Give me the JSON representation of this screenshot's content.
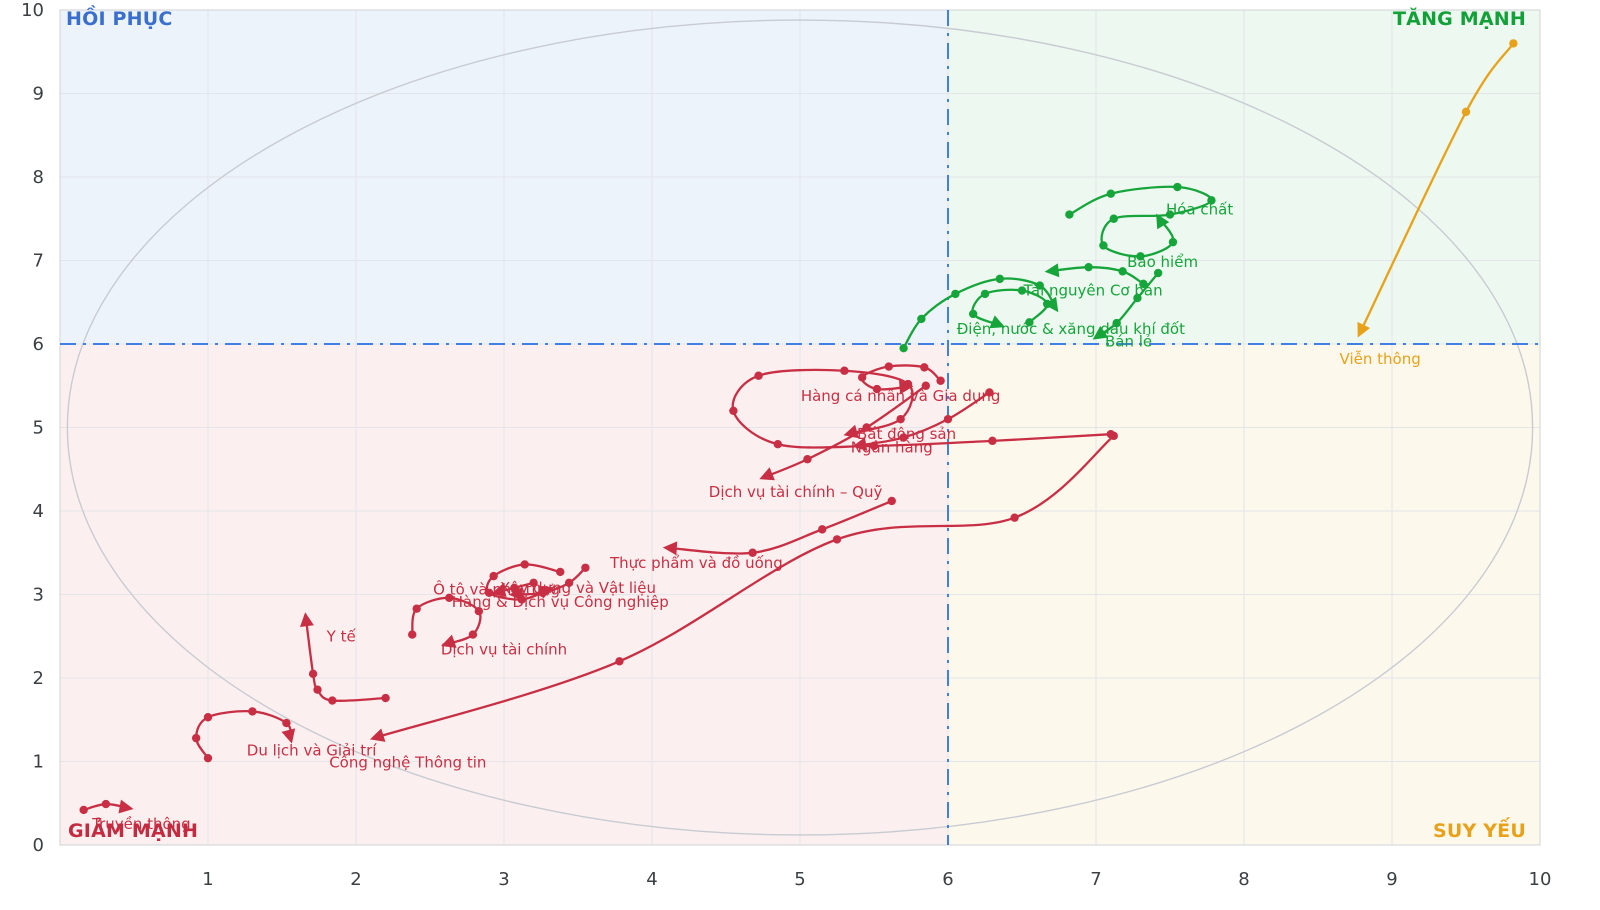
{
  "chart_data": {
    "type": "scatter",
    "variant": "relative-rotation-graph",
    "xlim": [
      0,
      10
    ],
    "ylim": [
      0,
      10
    ],
    "x_ticks": [
      1,
      2,
      3,
      4,
      5,
      6,
      7,
      8,
      9,
      10
    ],
    "y_ticks": [
      0,
      1,
      2,
      3,
      4,
      5,
      6,
      7,
      8,
      9,
      10
    ],
    "grid": true,
    "grid_color": "#e3e5e9",
    "border_color": "#d7d9dd",
    "center": [
      6,
      6
    ],
    "crosshair": {
      "x": 6,
      "y": 6,
      "color": "#4080e4",
      "style": "dash-dot"
    },
    "ellipse": {
      "cx": 5,
      "cy": 5,
      "rx": 4.95,
      "ry": 4.88,
      "color": "#c8cbd1"
    },
    "quadrants": [
      {
        "corner": "top-left",
        "label": "HỒI PHỤC",
        "text_color": "#3a6fce",
        "bg": "#edf3fa"
      },
      {
        "corner": "top-right",
        "label": "TĂNG MẠNH",
        "text_color": "#12a138",
        "bg": "#edf8f0"
      },
      {
        "corner": "bottom-left",
        "label": "GIẢM MẠNH",
        "text_color": "#c42b40",
        "bg": "#fbf0ef"
      },
      {
        "corner": "bottom-right",
        "label": "SUY YẾU",
        "text_color": "#e8a21a",
        "bg": "#fdf8ec"
      }
    ],
    "series": [
      {
        "id": "bat-dong-san",
        "name": "Bất động sản",
        "color": "#c82f44",
        "points": [
          [
            7.1,
            4.92
          ],
          [
            6.3,
            4.84
          ],
          [
            5.5,
            4.78
          ],
          [
            4.85,
            4.8
          ],
          [
            4.55,
            5.2
          ],
          [
            4.72,
            5.62
          ],
          [
            5.3,
            5.68
          ],
          [
            5.73,
            5.52
          ],
          [
            5.68,
            5.1
          ],
          [
            5.32,
            4.92
          ]
        ],
        "label_pos": [
          5.72,
          4.86
        ]
      },
      {
        "id": "cong-nghe-thong-tin",
        "name": "Công nghệ Thông tin",
        "color": "#c82f44",
        "points": [
          [
            7.12,
            4.9
          ],
          [
            6.45,
            3.92
          ],
          [
            5.25,
            3.66
          ],
          [
            3.78,
            2.2
          ],
          [
            2.12,
            1.28
          ]
        ],
        "label_pos": [
          2.35,
          0.93
        ]
      },
      {
        "id": "ngan-hang",
        "name": "Ngân hàng",
        "color": "#c82f44",
        "points": [
          [
            6.28,
            5.42
          ],
          [
            6.0,
            5.1
          ],
          [
            5.7,
            4.88
          ],
          [
            5.38,
            4.78
          ]
        ],
        "label_pos": [
          5.62,
          4.7
        ]
      },
      {
        "id": "dich-vu-tai-chinh-quy",
        "name": "Dịch vụ tài chính – Quỹ",
        "color": "#c82f44",
        "points": [
          [
            5.85,
            5.5
          ],
          [
            5.45,
            5.0
          ],
          [
            5.05,
            4.62
          ],
          [
            4.75,
            4.4
          ]
        ],
        "label_pos": [
          4.97,
          4.17
        ]
      },
      {
        "id": "thuc-pham-do-uong",
        "name": "Thực phẩm và đồ uống",
        "color": "#c82f44",
        "points": [
          [
            5.62,
            4.12
          ],
          [
            5.15,
            3.78
          ],
          [
            4.68,
            3.5
          ],
          [
            4.1,
            3.56
          ]
        ],
        "label_pos": [
          4.3,
          3.32
        ]
      },
      {
        "id": "hang-ca-nhan-gia-dung",
        "name": "Hàng cá nhân và Gia dụng",
        "color": "#c82f44",
        "points": [
          [
            5.95,
            5.56
          ],
          [
            5.84,
            5.72
          ],
          [
            5.6,
            5.73
          ],
          [
            5.42,
            5.6
          ],
          [
            5.52,
            5.46
          ],
          [
            5.74,
            5.49
          ]
        ],
        "label_pos": [
          5.68,
          5.32
        ]
      },
      {
        "id": "xay-dung-vat-lieu",
        "name": "Xây dựng và Vật liệu",
        "color": "#c82f44",
        "points": [
          [
            3.38,
            3.27
          ],
          [
            3.14,
            3.36
          ],
          [
            2.93,
            3.22
          ],
          [
            2.9,
            3.02
          ],
          [
            3.12,
            2.94
          ],
          [
            3.31,
            3.07
          ]
        ],
        "label_pos": [
          3.5,
          3.02
        ]
      },
      {
        "id": "hang-dich-vu-cong-nghiep",
        "name": "Hàng & Dịch vụ Công nghiệp",
        "color": "#c82f44",
        "points": [
          [
            3.55,
            3.32
          ],
          [
            3.44,
            3.14
          ],
          [
            3.26,
            3.02
          ],
          [
            3.06,
            3.0
          ]
        ],
        "label_pos": [
          3.38,
          2.85
        ]
      },
      {
        "id": "o-to-phu-tung",
        "name": "Ô tô và phụ tùng",
        "color": "#c82f44",
        "points": [
          [
            3.2,
            3.14
          ],
          [
            3.07,
            3.08
          ],
          [
            2.94,
            3.02
          ]
        ],
        "label_pos": [
          2.95,
          3.0
        ]
      },
      {
        "id": "y-te",
        "name": "Y tế",
        "color": "#c82f44",
        "points": [
          [
            2.2,
            1.76
          ],
          [
            1.84,
            1.73
          ],
          [
            1.74,
            1.86
          ],
          [
            1.71,
            2.05
          ],
          [
            1.66,
            2.74
          ]
        ],
        "label_pos": [
          1.9,
          2.44
        ]
      },
      {
        "id": "dich-vu-tai-chinh",
        "name": "Dịch vụ tài chính",
        "color": "#c82f44",
        "points": [
          [
            2.38,
            2.52
          ],
          [
            2.41,
            2.83
          ],
          [
            2.63,
            2.96
          ],
          [
            2.83,
            2.8
          ],
          [
            2.79,
            2.52
          ],
          [
            2.6,
            2.4
          ]
        ],
        "label_pos": [
          3.0,
          2.28
        ]
      },
      {
        "id": "du-lich-giai-tri",
        "name": "Du lịch và Giải trí",
        "color": "#c82f44",
        "points": [
          [
            1.0,
            1.04
          ],
          [
            0.92,
            1.28
          ],
          [
            1.0,
            1.53
          ],
          [
            1.3,
            1.6
          ],
          [
            1.53,
            1.46
          ],
          [
            1.56,
            1.26
          ]
        ],
        "label_pos": [
          1.7,
          1.07
        ]
      },
      {
        "id": "truyen-thong",
        "name": "Truyền thông",
        "color": "#c82f44",
        "points": [
          [
            0.16,
            0.42
          ],
          [
            0.31,
            0.49
          ],
          [
            0.47,
            0.44
          ]
        ],
        "label_pos": [
          0.55,
          0.19
        ]
      },
      {
        "id": "dien-nuoc-xang-dau-khi-dot",
        "name": "Điện, nước & xăng dầu khí đốt",
        "color": "#16a53a",
        "points": [
          [
            5.7,
            5.95
          ],
          [
            5.82,
            6.3
          ],
          [
            6.05,
            6.6
          ],
          [
            6.35,
            6.78
          ],
          [
            6.62,
            6.7
          ],
          [
            6.73,
            6.42
          ]
        ],
        "label_pos": [
          6.83,
          6.12
        ]
      },
      {
        "id": "tai-nguyen-co-ban",
        "name": "Tài nguyên Cơ bản",
        "color": "#16a53a",
        "points": [
          [
            6.55,
            6.26
          ],
          [
            6.67,
            6.48
          ],
          [
            6.5,
            6.64
          ],
          [
            6.25,
            6.6
          ],
          [
            6.17,
            6.36
          ],
          [
            6.36,
            6.22
          ]
        ],
        "label_pos": [
          6.98,
          6.58
        ]
      },
      {
        "id": "ban-le",
        "name": "Bán lẻ",
        "color": "#16a53a",
        "points": [
          [
            7.42,
            6.85
          ],
          [
            7.28,
            6.55
          ],
          [
            7.14,
            6.25
          ],
          [
            7.0,
            6.08
          ]
        ],
        "label_pos": [
          7.22,
          5.97
        ]
      },
      {
        "id": "bao-hiem",
        "name": "Bảo hiểm",
        "color": "#16a53a",
        "points": [
          [
            7.32,
            6.72
          ],
          [
            7.18,
            6.87
          ],
          [
            6.95,
            6.92
          ],
          [
            6.68,
            6.87
          ]
        ],
        "label_pos": [
          7.45,
          6.92
        ]
      },
      {
        "id": "hoa-chat",
        "name": "Hóa chất",
        "color": "#16a53a",
        "points": [
          [
            6.82,
            7.55
          ],
          [
            7.1,
            7.8
          ],
          [
            7.55,
            7.88
          ],
          [
            7.78,
            7.72
          ],
          [
            7.5,
            7.55
          ],
          [
            7.12,
            7.5
          ],
          [
            7.05,
            7.18
          ],
          [
            7.3,
            7.05
          ],
          [
            7.52,
            7.22
          ],
          [
            7.42,
            7.52
          ]
        ],
        "label_pos": [
          7.7,
          7.55
        ]
      },
      {
        "id": "vien-thong",
        "name": "Viễn thông",
        "color": "#e8a21a",
        "points": [
          [
            9.82,
            9.6
          ],
          [
            9.5,
            8.78
          ],
          [
            8.78,
            6.12
          ]
        ],
        "label_pos": [
          8.92,
          5.76
        ]
      }
    ]
  }
}
